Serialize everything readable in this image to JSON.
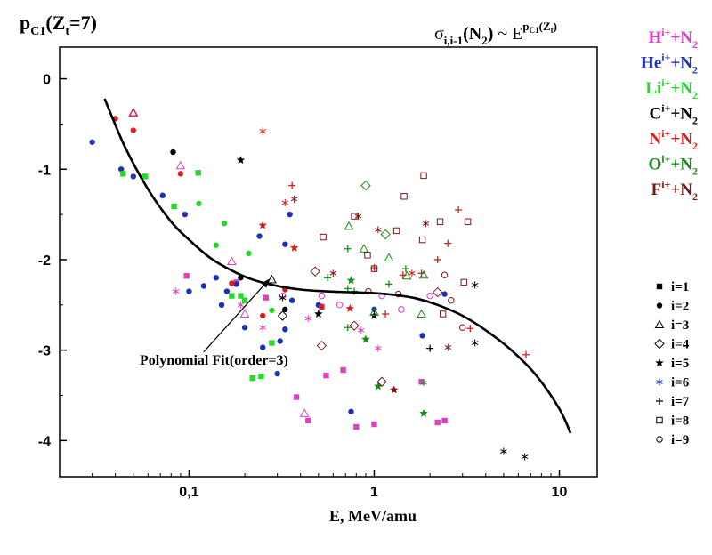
{
  "chart_data": {
    "type": "scatter",
    "title_left": {
      "base": "p",
      "sub": "C1",
      "paren": "(Z",
      "paren_sub": "t",
      "tail": "=7)"
    },
    "title_right": {
      "sigma": "σ",
      "sigma_sub": "i,i-1",
      "mid": "(N",
      "mid_sub": "2",
      "close": ")",
      "tilde": " ~ E",
      "exp_base": "p",
      "exp_sub": "C1",
      "exp_tail": "(Z",
      "exp_tail_sub": "t",
      "exp_close": ")"
    },
    "xlabel": "E, MeV/amu",
    "x_scale": "log",
    "xlim": [
      0.02,
      16
    ],
    "ylim": [
      -4.4,
      0.35
    ],
    "x_ticks": [
      {
        "value": 0.1,
        "label": "0,1"
      },
      {
        "value": 1,
        "label": "1"
      },
      {
        "value": 10,
        "label": "10"
      }
    ],
    "y_ticks": [
      {
        "value": 0,
        "label": "0"
      },
      {
        "value": -1,
        "label": "-1"
      },
      {
        "value": -2,
        "label": "-2"
      },
      {
        "value": -3,
        "label": "-3"
      },
      {
        "value": -4,
        "label": "-4"
      }
    ],
    "projectiles": [
      {
        "ion": "H",
        "color": "#e040c0"
      },
      {
        "ion": "He",
        "color": "#1f2fb8"
      },
      {
        "ion": "Li",
        "color": "#2ad82a"
      },
      {
        "ion": "C",
        "color": "#000000"
      },
      {
        "ion": "N",
        "color": "#d42020"
      },
      {
        "ion": "O",
        "color": "#1a8a1a"
      },
      {
        "ion": "F",
        "color": "#7a1818"
      }
    ],
    "projectile_suffix": {
      "sup": "i+",
      "plus": "+N",
      "sub": "2"
    },
    "symbols": [
      {
        "label": "i=1",
        "shape": "square"
      },
      {
        "label": "i=2",
        "shape": "circle"
      },
      {
        "label": "i=3",
        "shape": "triangle-open"
      },
      {
        "label": "i=4",
        "shape": "diamond-open"
      },
      {
        "label": "i=5",
        "shape": "star"
      },
      {
        "label": "i=6",
        "shape": "asterisk-blue"
      },
      {
        "label": "i=7",
        "shape": "plus"
      },
      {
        "label": "i=8",
        "shape": "square-open"
      },
      {
        "label": "i=9",
        "shape": "circle-open"
      }
    ],
    "fit": {
      "label": "Polynomial Fit(order=3)",
      "points": [
        [
          0.035,
          -0.22
        ],
        [
          0.045,
          -0.75
        ],
        [
          0.06,
          -1.22
        ],
        [
          0.08,
          -1.58
        ],
        [
          0.1,
          -1.78
        ],
        [
          0.13,
          -1.98
        ],
        [
          0.17,
          -2.12
        ],
        [
          0.22,
          -2.22
        ],
        [
          0.3,
          -2.29
        ],
        [
          0.4,
          -2.33
        ],
        [
          0.55,
          -2.35
        ],
        [
          0.75,
          -2.36
        ],
        [
          1.0,
          -2.37
        ],
        [
          1.3,
          -2.39
        ],
        [
          1.7,
          -2.43
        ],
        [
          2.2,
          -2.5
        ],
        [
          3.0,
          -2.62
        ],
        [
          4.0,
          -2.78
        ],
        [
          5.5,
          -3.0
        ],
        [
          7.5,
          -3.28
        ],
        [
          10.0,
          -3.65
        ],
        [
          11.5,
          -3.92
        ]
      ]
    },
    "annotation": {
      "text": "Polynomial Fit(order=3)",
      "arrow_from": [
        0.12,
        -3.02
      ],
      "arrow_to": [
        0.27,
        -2.22
      ]
    },
    "series": [
      {
        "name": "H",
        "color": "#e040c0",
        "points": [
          [
            0.097,
            -2.18,
            "square"
          ],
          [
            0.18,
            -2.25,
            "square"
          ],
          [
            0.26,
            -2.42,
            "square"
          ],
          [
            0.52,
            -2.52,
            "square"
          ],
          [
            0.55,
            -3.28,
            "square"
          ],
          [
            0.68,
            -3.22,
            "square"
          ],
          [
            0.38,
            -3.52,
            "square"
          ],
          [
            0.44,
            -3.78,
            "square"
          ],
          [
            0.8,
            -3.85,
            "square"
          ],
          [
            1.0,
            -3.82,
            "square"
          ],
          [
            1.8,
            -3.35,
            "square"
          ],
          [
            2.2,
            -3.8,
            "square"
          ],
          [
            2.4,
            -3.78,
            "square"
          ],
          [
            0.05,
            -0.37,
            "triangle-open"
          ],
          [
            0.09,
            -0.96,
            "triangle-open"
          ],
          [
            0.17,
            -2.02,
            "triangle-open"
          ],
          [
            0.42,
            -3.7,
            "triangle-open"
          ],
          [
            0.2,
            -2.6,
            "triangle-open"
          ],
          [
            0.085,
            -2.35,
            "asterisk"
          ],
          [
            0.19,
            -2.5,
            "asterisk"
          ],
          [
            0.25,
            -2.75,
            "asterisk"
          ],
          [
            0.44,
            -2.65,
            "asterisk"
          ],
          [
            0.85,
            -2.78,
            "asterisk"
          ],
          [
            1.05,
            -2.98,
            "asterisk"
          ],
          [
            0.32,
            -2.4,
            "circle-open"
          ],
          [
            0.52,
            -2.4,
            "circle-open"
          ],
          [
            0.65,
            -2.5,
            "circle-open"
          ],
          [
            1.1,
            -2.4,
            "circle-open"
          ],
          [
            1.4,
            -2.55,
            "circle-open"
          ],
          [
            2.0,
            -2.4,
            "circle-open"
          ]
        ]
      },
      {
        "name": "He",
        "color": "#1f2fb8",
        "points": [
          [
            0.03,
            -0.7,
            "circle"
          ],
          [
            0.043,
            -1.0,
            "circle"
          ],
          [
            0.05,
            -1.08,
            "circle"
          ],
          [
            0.072,
            -1.29,
            "circle"
          ],
          [
            0.095,
            -1.5,
            "circle"
          ],
          [
            0.1,
            -2.35,
            "circle"
          ],
          [
            0.12,
            -2.29,
            "circle"
          ],
          [
            0.14,
            -2.2,
            "circle"
          ],
          [
            0.16,
            -2.35,
            "circle"
          ],
          [
            0.2,
            -2.75,
            "circle"
          ],
          [
            0.24,
            -1.74,
            "circle"
          ],
          [
            0.25,
            -2.97,
            "circle"
          ],
          [
            0.3,
            -3.26,
            "circle"
          ],
          [
            0.31,
            -2.9,
            "circle"
          ],
          [
            0.33,
            -2.77,
            "circle"
          ],
          [
            0.33,
            -1.83,
            "circle"
          ],
          [
            0.35,
            -1.5,
            "circle"
          ],
          [
            0.36,
            -2.45,
            "circle"
          ],
          [
            0.5,
            -2.5,
            "circle"
          ],
          [
            0.75,
            -3.68,
            "circle"
          ],
          [
            1.0,
            -2.55,
            "circle"
          ],
          [
            1.82,
            -2.84,
            "circle"
          ],
          [
            2.4,
            -2.38,
            "circle"
          ],
          [
            0.15,
            -2.5,
            "circle"
          ],
          [
            0.18,
            -2.27,
            "circle"
          ],
          [
            0.2,
            -2.45,
            "circle"
          ]
        ]
      },
      {
        "name": "Li",
        "color": "#2ad82a",
        "points": [
          [
            0.044,
            -1.05,
            "square"
          ],
          [
            0.058,
            -1.08,
            "square"
          ],
          [
            0.083,
            -1.41,
            "square"
          ],
          [
            0.112,
            -1.04,
            "square"
          ],
          [
            0.17,
            -2.4,
            "square"
          ],
          [
            0.2,
            -2.45,
            "square"
          ],
          [
            0.19,
            -2.4,
            "square"
          ],
          [
            0.22,
            -3.31,
            "square"
          ],
          [
            0.245,
            -3.29,
            "square"
          ],
          [
            0.28,
            -2.92,
            "square"
          ],
          [
            0.14,
            -1.84,
            "circle"
          ],
          [
            0.113,
            -1.38,
            "circle"
          ],
          [
            0.21,
            -1.93,
            "circle"
          ],
          [
            0.28,
            -2.56,
            "circle"
          ],
          [
            0.155,
            -1.6,
            "circle"
          ]
        ]
      },
      {
        "name": "C",
        "color": "#000000",
        "points": [
          [
            0.082,
            -0.81,
            "circle"
          ],
          [
            0.19,
            -2.2,
            "circle"
          ],
          [
            0.33,
            -2.55,
            "circle"
          ],
          [
            0.19,
            -0.9,
            "star"
          ],
          [
            0.5,
            -2.6,
            "star"
          ],
          [
            1.0,
            -2.62,
            "star"
          ],
          [
            3.5,
            -2.92,
            "asterisk"
          ],
          [
            5.0,
            -4.12,
            "asterisk"
          ],
          [
            6.5,
            -4.18,
            "asterisk"
          ],
          [
            2.0,
            -2.98,
            "plus"
          ],
          [
            3.5,
            -2.28,
            "asterisk"
          ],
          [
            0.28,
            -2.22,
            "triangle-open"
          ],
          [
            0.32,
            -2.42,
            "asterisk"
          ],
          [
            0.32,
            -2.62,
            "diamond-open"
          ]
        ]
      },
      {
        "name": "N",
        "color": "#d42020",
        "points": [
          [
            0.04,
            -0.44,
            "circle"
          ],
          [
            0.05,
            -0.57,
            "circle"
          ],
          [
            0.09,
            -1.05,
            "circle"
          ],
          [
            0.17,
            -2.26,
            "circle"
          ],
          [
            0.25,
            -2.62,
            "circle"
          ],
          [
            0.33,
            -2.33,
            "circle"
          ],
          [
            0.52,
            -2.52,
            "circle"
          ],
          [
            0.05,
            -0.38,
            "triangle-open"
          ],
          [
            0.25,
            -0.58,
            "asterisk"
          ],
          [
            0.25,
            -1.62,
            "star"
          ],
          [
            0.37,
            -1.87,
            "star"
          ],
          [
            0.74,
            -2.54,
            "star"
          ],
          [
            1.0,
            -2.09,
            "plus"
          ],
          [
            1.43,
            -2.17,
            "plus"
          ],
          [
            1.8,
            -2.15,
            "plus"
          ],
          [
            2.2,
            -2.0,
            "plus"
          ],
          [
            2.5,
            -1.82,
            "plus"
          ],
          [
            2.85,
            -1.45,
            "plus"
          ],
          [
            3.3,
            -2.76,
            "plus"
          ],
          [
            6.6,
            -3.05,
            "plus"
          ],
          [
            0.36,
            -1.18,
            "plus"
          ],
          [
            1.15,
            -2.6,
            "plus"
          ],
          [
            1.6,
            -2.15,
            "asterisk"
          ],
          [
            0.33,
            -1.37,
            "asterisk"
          ]
        ]
      },
      {
        "name": "O",
        "color": "#1a8a1a",
        "points": [
          [
            0.73,
            -1.63,
            "triangle-open"
          ],
          [
            0.88,
            -1.88,
            "triangle-open"
          ],
          [
            1.2,
            -1.98,
            "triangle-open"
          ],
          [
            1.5,
            -2.18,
            "triangle-open"
          ],
          [
            1.85,
            -2.17,
            "triangle-open"
          ],
          [
            1.0,
            -2.58,
            "triangle-open"
          ],
          [
            1.8,
            -2.6,
            "triangle-open"
          ],
          [
            0.9,
            -1.18,
            "diamond-open"
          ],
          [
            1.15,
            -1.72,
            "diamond-open"
          ],
          [
            0.75,
            -2.23,
            "star"
          ],
          [
            0.9,
            -2.88,
            "star"
          ],
          [
            1.05,
            -3.4,
            "star"
          ],
          [
            1.85,
            -3.7,
            "star"
          ],
          [
            1.85,
            -3.36,
            "asterisk"
          ],
          [
            0.72,
            -1.88,
            "plus"
          ],
          [
            0.56,
            -2.2,
            "plus"
          ],
          [
            0.72,
            -2.32,
            "plus"
          ],
          [
            1.48,
            -2.1,
            "plus"
          ],
          [
            1.2,
            -2.27,
            "plus"
          ],
          [
            0.78,
            -2.35,
            "plus"
          ],
          [
            0.72,
            -2.75,
            "plus"
          ]
        ]
      },
      {
        "name": "F",
        "color": "#7a1818",
        "points": [
          [
            0.53,
            -1.75,
            "square-open"
          ],
          [
            0.78,
            -1.52,
            "square-open"
          ],
          [
            0.92,
            -1.95,
            "square-open"
          ],
          [
            1.0,
            -2.1,
            "square-open"
          ],
          [
            1.45,
            -1.3,
            "square-open"
          ],
          [
            1.85,
            -1.07,
            "square-open"
          ],
          [
            2.27,
            -1.58,
            "square-open"
          ],
          [
            2.35,
            -2.6,
            "square-open"
          ],
          [
            3.2,
            -1.58,
            "square-open"
          ],
          [
            3.05,
            -2.25,
            "square-open"
          ],
          [
            1.82,
            -1.78,
            "square-open"
          ],
          [
            1.32,
            -1.68,
            "square-open"
          ],
          [
            0.48,
            -2.13,
            "diamond-open"
          ],
          [
            0.52,
            -2.95,
            "diamond-open"
          ],
          [
            0.78,
            -2.73,
            "diamond-open"
          ],
          [
            1.1,
            -3.35,
            "diamond-open"
          ],
          [
            2.2,
            -2.36,
            "diamond-open"
          ],
          [
            0.93,
            -2.35,
            "circle-open"
          ],
          [
            1.35,
            -2.38,
            "circle-open"
          ],
          [
            2.4,
            -2.17,
            "circle-open"
          ],
          [
            2.6,
            -2.45,
            "circle-open"
          ],
          [
            3.0,
            -2.75,
            "circle-open"
          ],
          [
            1.28,
            -3.44,
            "star"
          ],
          [
            0.82,
            -1.52,
            "asterisk"
          ],
          [
            1.05,
            -1.67,
            "asterisk"
          ],
          [
            1.9,
            -1.6,
            "asterisk"
          ],
          [
            2.5,
            -2.97,
            "asterisk"
          ],
          [
            0.6,
            -2.15,
            "asterisk"
          ],
          [
            0.37,
            -1.33,
            "asterisk"
          ]
        ]
      }
    ]
  }
}
